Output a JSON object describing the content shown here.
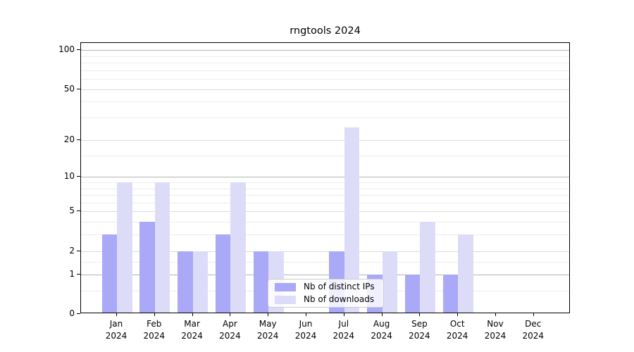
{
  "chart_data": {
    "type": "bar",
    "title": "rngtools 2024",
    "categories": [
      "Jan",
      "Feb",
      "Mar",
      "Apr",
      "May",
      "Jun",
      "Jul",
      "Aug",
      "Sep",
      "Oct",
      "Nov",
      "Dec"
    ],
    "category_year": "2024",
    "series": [
      {
        "name": "Nb of distinct IPs",
        "color": "#a9a9f8",
        "values": [
          3,
          4,
          2,
          3,
          2,
          0,
          2,
          1,
          1,
          1,
          0,
          0
        ]
      },
      {
        "name": "Nb of downloads",
        "color": "#dcdcf8",
        "values": [
          9,
          9,
          2,
          9,
          2,
          0,
          25,
          2,
          4,
          3,
          0,
          0
        ]
      }
    ],
    "yscale": "log1p",
    "ylim": [
      0,
      110
    ],
    "y_ticks": [
      0,
      1,
      2,
      5,
      10,
      20,
      50,
      100
    ],
    "y_major_grid": [
      1,
      10,
      100
    ],
    "y_mid_grid": [
      2,
      5,
      20,
      50
    ],
    "y_minor_grid": [
      0.5,
      1.5,
      3,
      4,
      6,
      7,
      8,
      9,
      15,
      30,
      40,
      60,
      70,
      80,
      90
    ],
    "grid": true,
    "legend_position": "lower center"
  }
}
